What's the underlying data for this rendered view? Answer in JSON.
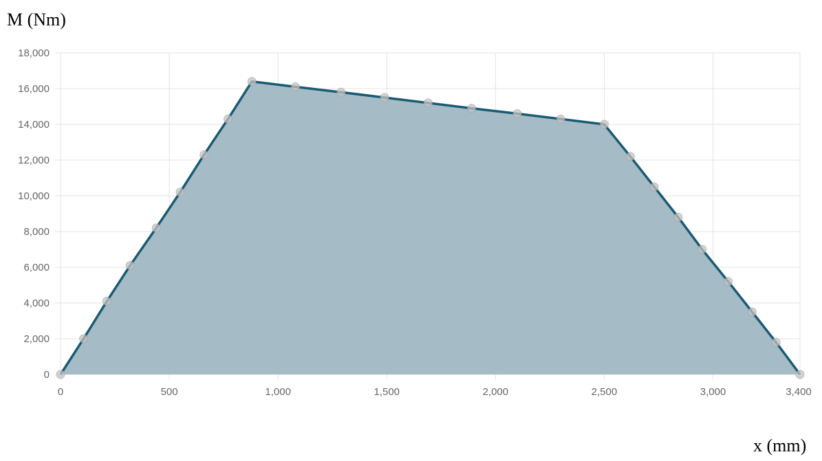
{
  "chart_data": {
    "type": "area",
    "ylabel": "M (Nm)",
    "xlabel": "x (mm)",
    "xlim": [
      0,
      3400
    ],
    "ylim": [
      0,
      18000
    ],
    "x_ticks": [
      0,
      500,
      1000,
      1500,
      2000,
      2500,
      3000,
      3400
    ],
    "x_tick_labels": [
      "0",
      "500",
      "1,000",
      "1,500",
      "2,000",
      "2,500",
      "3,000",
      "3,400"
    ],
    "y_ticks": [
      0,
      2000,
      4000,
      6000,
      8000,
      10000,
      12000,
      14000,
      16000,
      18000
    ],
    "y_tick_labels": [
      "0",
      "2,000",
      "4,000",
      "6,000",
      "8,000",
      "10,000",
      "12,000",
      "14,000",
      "16,000",
      "18,000"
    ],
    "grid": true,
    "series": [
      {
        "points": [
          [
            0,
            0
          ],
          [
            106,
            2000
          ],
          [
            213,
            4100
          ],
          [
            320,
            6100
          ],
          [
            440,
            8200
          ],
          [
            550,
            10200
          ],
          [
            660,
            12300
          ],
          [
            770,
            14300
          ],
          [
            880,
            16400
          ],
          [
            1080,
            16100
          ],
          [
            1290,
            15800
          ],
          [
            1490,
            15500
          ],
          [
            1690,
            15200
          ],
          [
            1890,
            14900
          ],
          [
            2100,
            14600
          ],
          [
            2300,
            14300
          ],
          [
            2500,
            14000
          ],
          [
            2620,
            12200
          ],
          [
            2730,
            10500
          ],
          [
            2840,
            8800
          ],
          [
            2950,
            7000
          ],
          [
            3070,
            5200
          ],
          [
            3180,
            3500
          ],
          [
            3290,
            1800
          ],
          [
            3400,
            0
          ]
        ],
        "line_color": "#1a5a72",
        "fill_color": "#a5bcc7"
      }
    ]
  }
}
